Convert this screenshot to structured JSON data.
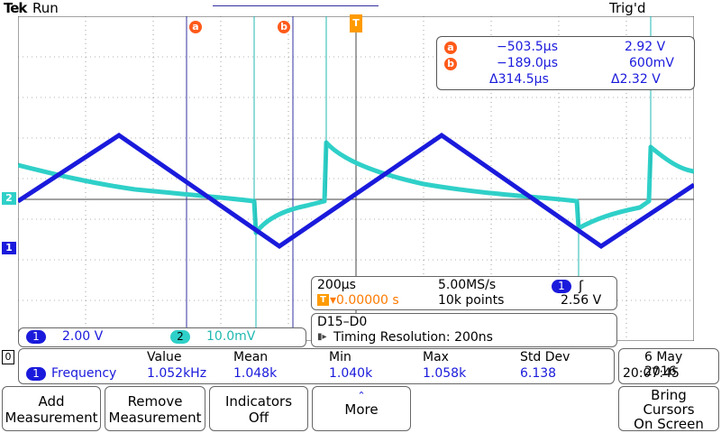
{
  "header": {
    "brand": "Tek",
    "run_status": "Run",
    "trigger_status": "Trig'd"
  },
  "markers": {
    "cursor_a": "a",
    "cursor_b": "b",
    "trigger_t": "T",
    "ch2": "2",
    "ch1": "1",
    "ground": "0"
  },
  "cursor_readout": {
    "a_label": "a",
    "a_time": "−503.5µs",
    "a_value": "2.92 V",
    "b_label": "b",
    "b_time": "−189.0µs",
    "b_value": "600mV",
    "delta_time": "Δ314.5µs",
    "delta_value": "Δ2.32 V"
  },
  "timebase": {
    "time_div": "200µs",
    "sample_rate": "5.00MS/s",
    "trigger_pos": "▾0.00000 s",
    "record_length": "10k points",
    "trig_source": "1",
    "trig_slope": "ʃ",
    "trig_level": "2.56 V"
  },
  "digital": {
    "label": "D15–D0",
    "timing": "Timing Resolution: 200ns"
  },
  "channels": [
    {
      "id": "1",
      "scale": "2.00 V"
    },
    {
      "id": "2",
      "scale": "10.0mV"
    }
  ],
  "measurement": {
    "headers": {
      "value": "Value",
      "mean": "Mean",
      "min": "Min",
      "max": "Max",
      "std": "Std Dev"
    },
    "row": {
      "ch": "1",
      "name": "Frequency",
      "value": "1.052kHz",
      "mean": "1.048k",
      "min": "1.040k",
      "max": "1.058k",
      "std": "6.138"
    }
  },
  "datetime": {
    "date": "6 May 2016",
    "time": "20:07:45"
  },
  "softkeys": {
    "add": [
      "Add",
      "Measurement"
    ],
    "remove": [
      "Remove",
      "Measurement"
    ],
    "indicators": [
      "Indicators",
      "Off"
    ],
    "more": "More",
    "bring": [
      "Bring",
      "Cursors",
      "On Screen"
    ]
  },
  "colors": {
    "ch1": "#1a1adc",
    "ch2": "#2fd0c8",
    "cursor": "#ff5a1a",
    "trigger": "#ff9a00"
  }
}
